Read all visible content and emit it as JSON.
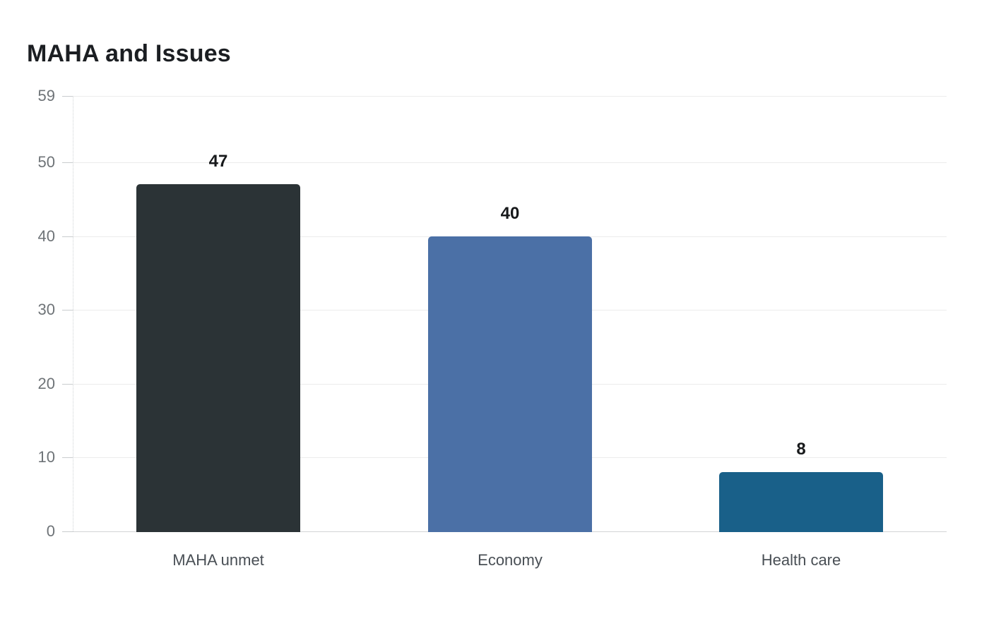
{
  "chart_data": {
    "type": "bar",
    "title": "MAHA and Issues",
    "categories": [
      "MAHA unmet",
      "Economy",
      "Health care"
    ],
    "values": [
      47,
      40,
      8
    ],
    "value_labels": [
      "47",
      "40",
      "8"
    ],
    "bar_colors": [
      "#2b3336",
      "#4b70a6",
      "#196089"
    ],
    "yticks": [
      0,
      10,
      20,
      30,
      40,
      50,
      59
    ],
    "ylim": [
      0,
      59
    ],
    "xlabel": "",
    "ylabel": "",
    "grid": "horizontal",
    "legend": "none",
    "background": "#ffffff",
    "colors": {
      "title_text": "#1b1e22",
      "value_label_text": "#17191b",
      "y_tick_text": "#6e7377",
      "x_tick_text": "#494f55",
      "gridline": "#ececec",
      "baseline": "#d2d4d6",
      "tick_mark": "#c9ccce",
      "dotted_axis": "#cfd3d6"
    }
  }
}
